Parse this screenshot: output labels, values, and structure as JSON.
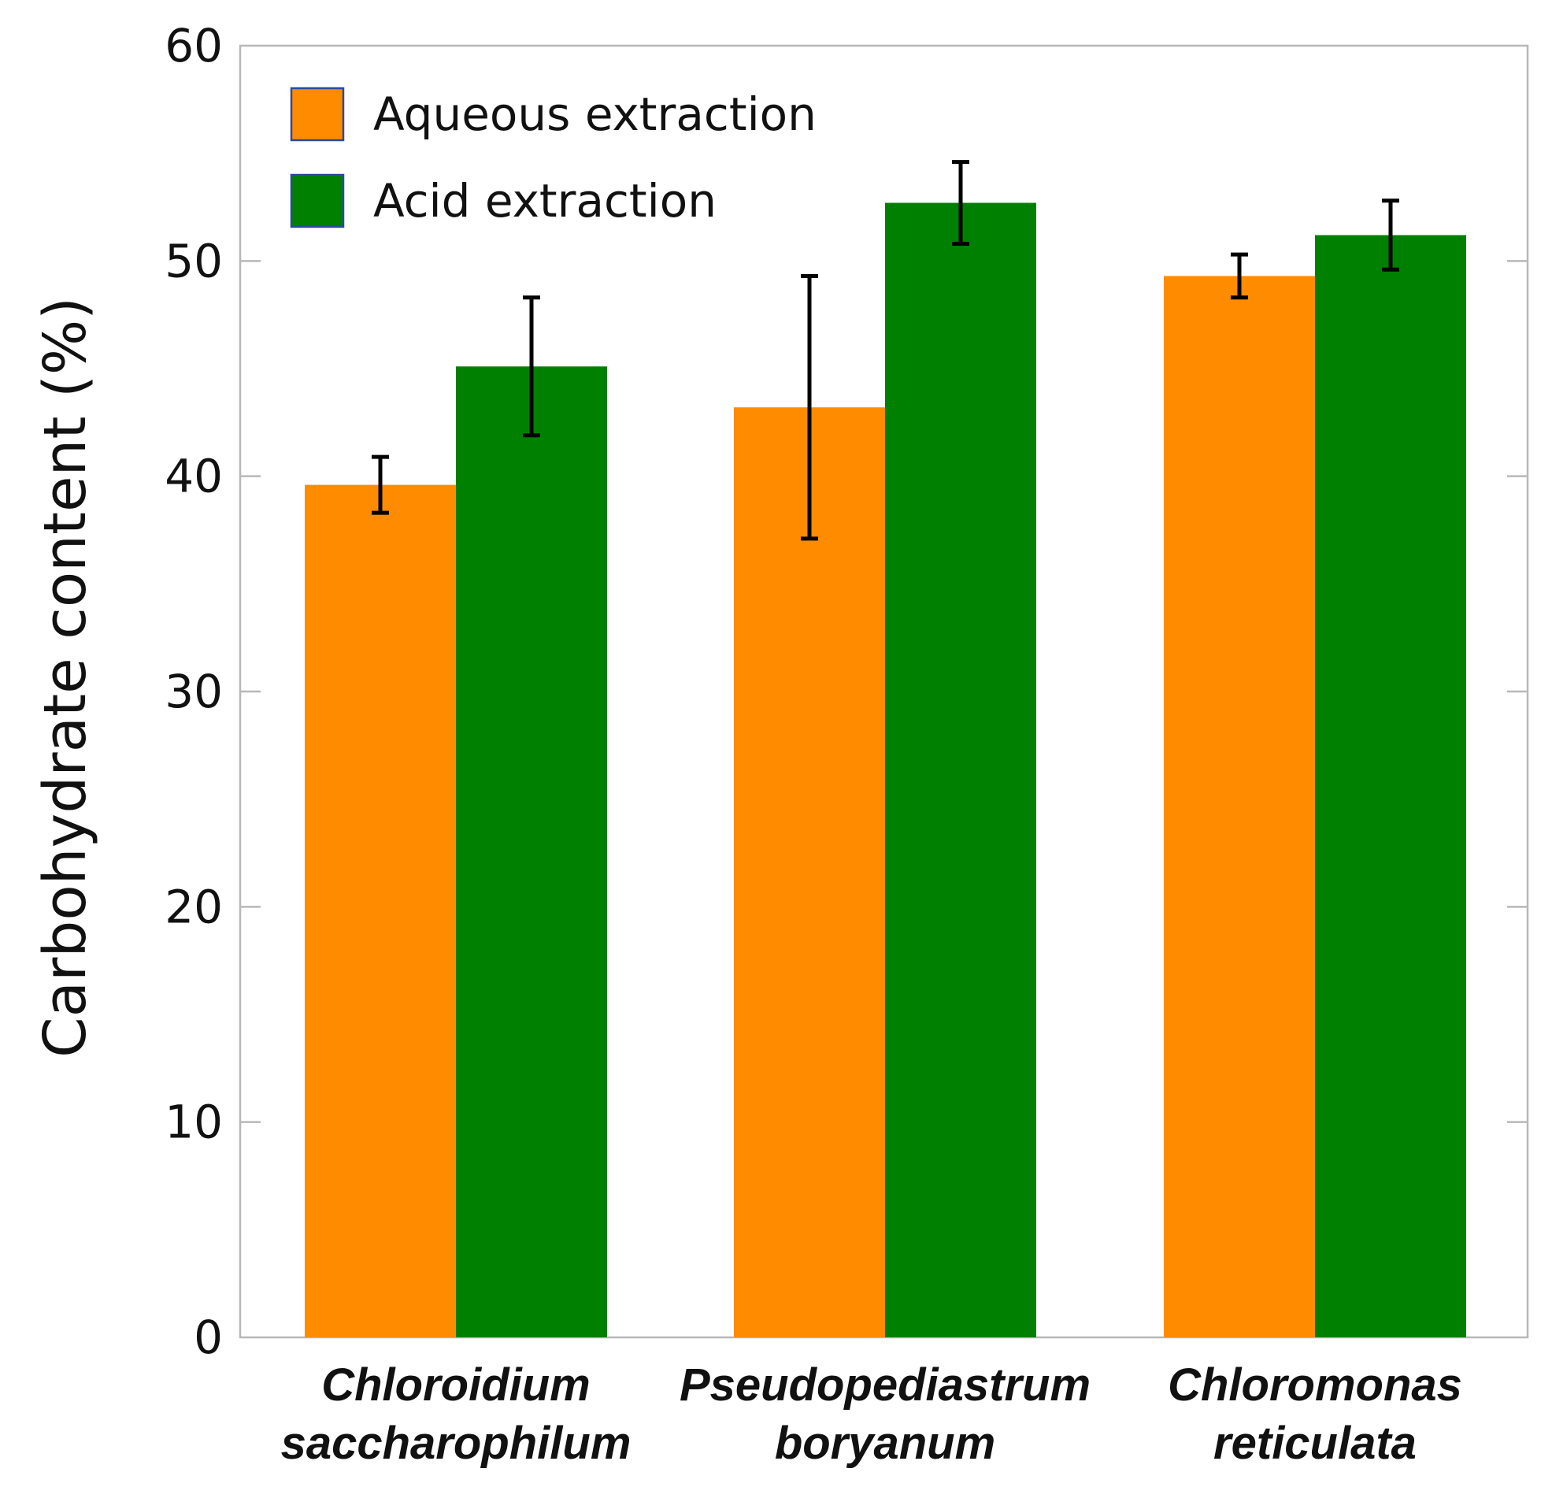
{
  "chart_data": {
    "type": "bar",
    "title": "",
    "xlabel": "",
    "ylabel": "Carbohydrate content (%)",
    "ylim": [
      0,
      60
    ],
    "yticks": [
      0,
      10,
      20,
      30,
      40,
      50,
      60
    ],
    "grid": false,
    "legend_position": "top-left",
    "categories": [
      [
        "Chloroidium",
        "saccharophilum"
      ],
      [
        "Pseudopediastrum",
        "boryanum"
      ],
      [
        "Chloromonas",
        "reticulata"
      ]
    ],
    "series": [
      {
        "name": "Aqueous extraction",
        "color": "#ff8c00",
        "values": [
          39.6,
          43.2,
          49.3
        ],
        "error_low": [
          38.3,
          37.1,
          48.3
        ],
        "error_high": [
          40.9,
          49.3,
          50.3
        ]
      },
      {
        "name": "Acid extraction",
        "color": "#008000",
        "values": [
          45.1,
          52.7,
          51.2
        ],
        "error_low": [
          41.9,
          50.8,
          49.6
        ],
        "error_high": [
          48.3,
          54.6,
          52.8
        ]
      }
    ]
  }
}
